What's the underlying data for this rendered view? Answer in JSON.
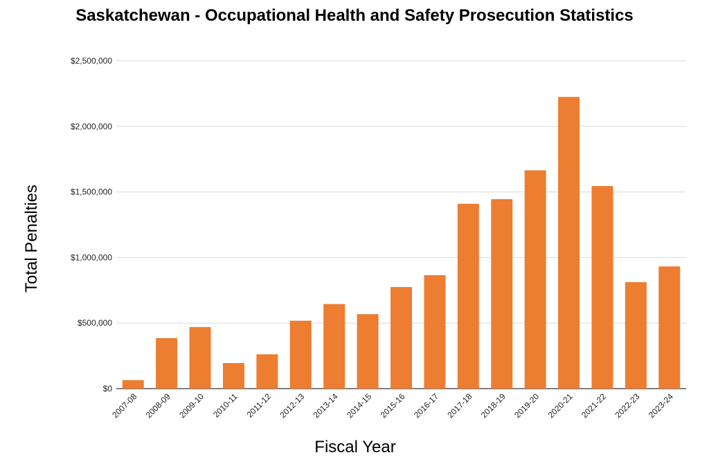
{
  "chart_data": {
    "type": "bar",
    "title": "Saskatchewan - Occupational Health and Safety Prosecution Statistics",
    "xlabel": "Fiscal Year",
    "ylabel": "Total Penalties",
    "ylim": [
      0,
      2500000
    ],
    "yticks": [
      0,
      500000,
      1000000,
      1500000,
      2000000,
      2500000
    ],
    "ytick_labels": [
      "$0",
      "$500,000",
      "$1,000,000",
      "$1,500,000",
      "$2,000,000",
      "$2,500,000"
    ],
    "grid": true,
    "categories": [
      "2007-08",
      "2008-09",
      "2009-10",
      "2010-11",
      "2011-12",
      "2012-13",
      "2013-14",
      "2014-15",
      "2015-16",
      "2016-17",
      "2017-18",
      "2018-19",
      "2019-20",
      "2020-21",
      "2021-22",
      "2022-23",
      "2023-24"
    ],
    "values": [
      65000,
      385000,
      470000,
      195000,
      262000,
      518000,
      645000,
      568000,
      775000,
      865000,
      1410000,
      1445000,
      1665000,
      2225000,
      1545000,
      812000,
      932000
    ],
    "bar_color": "#ed7d31",
    "grid_color": "#d9d9d9"
  }
}
